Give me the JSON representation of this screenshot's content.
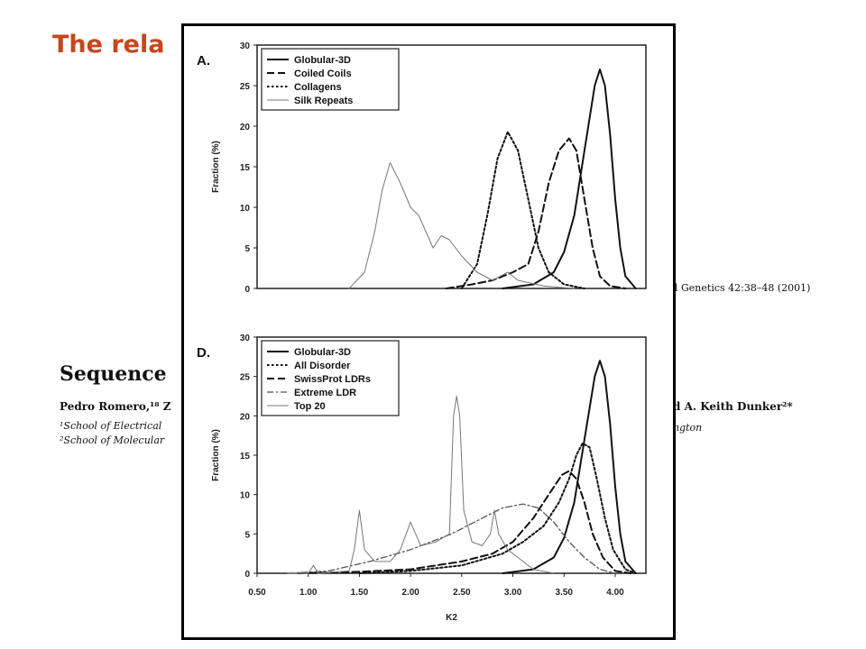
{
  "slide": {
    "title": "The rela                                              disorder",
    "journal": "l Genetics 42:38–48 (2001)",
    "paper_title": "Sequence",
    "authors_left": "Pedro Romero,¹⁸ Z",
    "authors_right": "d A. Keith Dunker²*",
    "aff1": "¹School of Electrical",
    "aff2": "²School of Molecular",
    "aff3": "ngton"
  },
  "chart_data": [
    {
      "type": "line",
      "panel_label": "A.",
      "xlabel": "",
      "ylabel": "Fraction (%)",
      "xlim": [
        0.5,
        4.3
      ],
      "ylim": [
        0,
        30
      ],
      "yticks": [
        0,
        5,
        10,
        15,
        20,
        25,
        30
      ],
      "grid": false,
      "legend_position": "top-left",
      "series": [
        {
          "name": "Globular-3D",
          "style": "solid",
          "points": [
            [
              2.9,
              0
            ],
            [
              3.2,
              0.5
            ],
            [
              3.4,
              2
            ],
            [
              3.5,
              4.5
            ],
            [
              3.6,
              9
            ],
            [
              3.7,
              17
            ],
            [
              3.8,
              25
            ],
            [
              3.85,
              27
            ],
            [
              3.9,
              25
            ],
            [
              3.95,
              19
            ],
            [
              4.0,
              11
            ],
            [
              4.05,
              5
            ],
            [
              4.1,
              1.5
            ],
            [
              4.2,
              0
            ]
          ]
        },
        {
          "name": "Coiled Coils",
          "style": "dashed",
          "points": [
            [
              2.35,
              0
            ],
            [
              2.6,
              0.5
            ],
            [
              2.8,
              1
            ],
            [
              3.0,
              2
            ],
            [
              3.15,
              3
            ],
            [
              3.25,
              7
            ],
            [
              3.35,
              13
            ],
            [
              3.45,
              17
            ],
            [
              3.55,
              18.5
            ],
            [
              3.62,
              17
            ],
            [
              3.7,
              11
            ],
            [
              3.78,
              5
            ],
            [
              3.85,
              1.5
            ],
            [
              3.95,
              0.3
            ],
            [
              4.1,
              0
            ]
          ]
        },
        {
          "name": "Collagens",
          "style": "dotted",
          "points": [
            [
              2.5,
              0
            ],
            [
              2.65,
              3
            ],
            [
              2.75,
              9
            ],
            [
              2.85,
              16
            ],
            [
              2.95,
              19.3
            ],
            [
              3.05,
              17
            ],
            [
              3.15,
              11
            ],
            [
              3.25,
              5
            ],
            [
              3.35,
              2
            ],
            [
              3.5,
              0.5
            ],
            [
              3.7,
              0
            ]
          ]
        },
        {
          "name": "Silk Repeats",
          "style": "thin",
          "points": [
            [
              1.4,
              0
            ],
            [
              1.55,
              2
            ],
            [
              1.65,
              7
            ],
            [
              1.72,
              12
            ],
            [
              1.8,
              15.5
            ],
            [
              1.9,
              13
            ],
            [
              2.0,
              10
            ],
            [
              2.08,
              9
            ],
            [
              2.15,
              7
            ],
            [
              2.22,
              5
            ],
            [
              2.3,
              6.5
            ],
            [
              2.38,
              6
            ],
            [
              2.5,
              4
            ],
            [
              2.65,
              2
            ],
            [
              2.8,
              1
            ],
            [
              2.95,
              2
            ],
            [
              3.05,
              1
            ],
            [
              3.3,
              0.3
            ],
            [
              3.6,
              0
            ]
          ]
        }
      ]
    },
    {
      "type": "line",
      "panel_label": "D.",
      "xlabel": "K2",
      "ylabel": "Fraction (%)",
      "xlim": [
        0.5,
        4.3
      ],
      "ylim": [
        0,
        30
      ],
      "xticks": [
        "0.50",
        "1.00",
        "1.50",
        "2.00",
        "2.50",
        "3.00",
        "3.50",
        "4.00"
      ],
      "yticks": [
        0,
        5,
        10,
        15,
        20,
        25,
        30
      ],
      "grid": false,
      "legend_position": "top-left",
      "series": [
        {
          "name": "Globular-3D",
          "style": "solid",
          "points": [
            [
              2.9,
              0
            ],
            [
              3.2,
              0.5
            ],
            [
              3.4,
              2
            ],
            [
              3.5,
              4.5
            ],
            [
              3.6,
              9
            ],
            [
              3.7,
              17
            ],
            [
              3.8,
              25
            ],
            [
              3.85,
              27
            ],
            [
              3.9,
              25
            ],
            [
              3.95,
              19
            ],
            [
              4.0,
              11
            ],
            [
              4.05,
              5
            ],
            [
              4.1,
              1.5
            ],
            [
              4.2,
              0
            ]
          ]
        },
        {
          "name": "All Disorder",
          "style": "dotted",
          "points": [
            [
              1.5,
              0
            ],
            [
              2.0,
              0.3
            ],
            [
              2.5,
              1
            ],
            [
              2.9,
              2.5
            ],
            [
              3.1,
              4
            ],
            [
              3.3,
              6
            ],
            [
              3.45,
              9
            ],
            [
              3.55,
              12
            ],
            [
              3.62,
              15
            ],
            [
              3.68,
              16.5
            ],
            [
              3.75,
              16
            ],
            [
              3.82,
              12
            ],
            [
              3.9,
              7
            ],
            [
              3.98,
              3
            ],
            [
              4.1,
              0.5
            ],
            [
              4.2,
              0
            ]
          ]
        },
        {
          "name": "SwissProt LDRs",
          "style": "dashed",
          "points": [
            [
              0.9,
              0
            ],
            [
              1.5,
              0.2
            ],
            [
              2.0,
              0.5
            ],
            [
              2.5,
              1.5
            ],
            [
              2.8,
              2.5
            ],
            [
              3.0,
              4
            ],
            [
              3.2,
              7
            ],
            [
              3.35,
              10
            ],
            [
              3.48,
              12.5
            ],
            [
              3.55,
              13
            ],
            [
              3.62,
              12
            ],
            [
              3.7,
              9
            ],
            [
              3.78,
              5
            ],
            [
              3.88,
              2
            ],
            [
              4.0,
              0.3
            ],
            [
              4.15,
              0
            ]
          ]
        },
        {
          "name": "Extreme LDR",
          "style": "dashdot",
          "points": [
            [
              0.8,
              0
            ],
            [
              1.2,
              0.3
            ],
            [
              1.6,
              1.5
            ],
            [
              2.0,
              3
            ],
            [
              2.4,
              5
            ],
            [
              2.7,
              7
            ],
            [
              2.9,
              8.3
            ],
            [
              3.1,
              8.8
            ],
            [
              3.25,
              8.3
            ],
            [
              3.4,
              6.5
            ],
            [
              3.55,
              4
            ],
            [
              3.7,
              2
            ],
            [
              3.85,
              0.5
            ],
            [
              4.0,
              0
            ]
          ]
        },
        {
          "name": "Top 20",
          "style": "thin",
          "points": [
            [
              0.8,
              0
            ],
            [
              1.0,
              0
            ],
            [
              1.05,
              1
            ],
            [
              1.1,
              0
            ],
            [
              1.4,
              0.3
            ],
            [
              1.45,
              3
            ],
            [
              1.5,
              8
            ],
            [
              1.55,
              3
            ],
            [
              1.65,
              1.5
            ],
            [
              1.8,
              1.5
            ],
            [
              1.9,
              3
            ],
            [
              2.0,
              6.5
            ],
            [
              2.1,
              3.5
            ],
            [
              2.25,
              4
            ],
            [
              2.38,
              5
            ],
            [
              2.42,
              20
            ],
            [
              2.45,
              22.5
            ],
            [
              2.48,
              20
            ],
            [
              2.52,
              8
            ],
            [
              2.6,
              4
            ],
            [
              2.7,
              3.5
            ],
            [
              2.78,
              5
            ],
            [
              2.82,
              8
            ],
            [
              2.86,
              5
            ],
            [
              2.95,
              3
            ],
            [
              3.05,
              2
            ],
            [
              3.2,
              0.5
            ],
            [
              3.4,
              0
            ]
          ]
        }
      ]
    }
  ]
}
